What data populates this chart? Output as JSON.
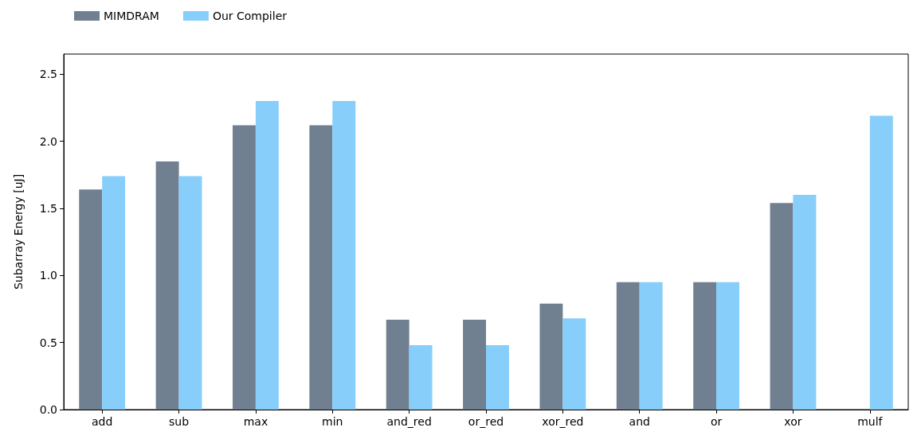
{
  "chart_data": {
    "type": "bar",
    "ylabel": "Subarray Energy [uJ]",
    "categories": [
      "add",
      "sub",
      "max",
      "min",
      "and_red",
      "or_red",
      "xor_red",
      "and",
      "or",
      "xor",
      "mulf"
    ],
    "series": [
      {
        "name": "MIMDRAM",
        "color": "#708090",
        "values": [
          1.64,
          1.85,
          2.12,
          2.12,
          0.67,
          0.67,
          0.79,
          0.95,
          0.95,
          1.54,
          null
        ]
      },
      {
        "name": "Our Compiler",
        "color": "#87cefa",
        "values": [
          1.74,
          1.74,
          2.3,
          2.3,
          0.48,
          0.48,
          0.68,
          0.95,
          0.95,
          1.6,
          2.19
        ]
      }
    ],
    "ylim": [
      0,
      2.65
    ],
    "yticks": [
      {
        "value": 0,
        "label": "0.0"
      },
      0.5,
      {
        "value": 1,
        "label": "1.0"
      },
      1.5,
      {
        "value": 2,
        "label": "2.0"
      },
      2.5
    ],
    "grid": false,
    "legend": "top left"
  }
}
